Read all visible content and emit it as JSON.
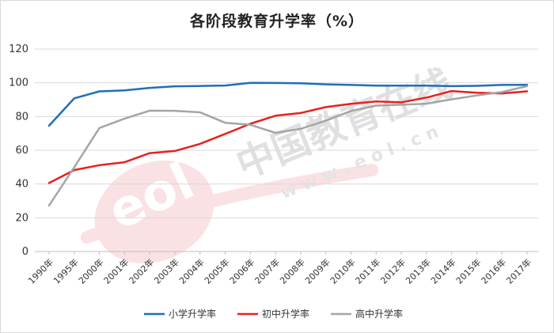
{
  "chart_data": {
    "type": "line",
    "title": "各阶段教育升学率（%）",
    "xlabel": "",
    "ylabel": "",
    "ylim": [
      0,
      120
    ],
    "yticks": [
      0,
      20,
      40,
      60,
      80,
      100,
      120
    ],
    "grid": "horizontal",
    "legend_position": "bottom",
    "categories": [
      "1990年",
      "1995年",
      "2000年",
      "2001年",
      "2002年",
      "2003年",
      "2004年",
      "2005年",
      "2006年",
      "2007年",
      "2008年",
      "2009年",
      "2010年",
      "2011年",
      "2012年",
      "2013年",
      "2014年",
      "2015年",
      "2016年",
      "2017年"
    ],
    "series": [
      {
        "name": "小学升学率",
        "color": "#1f6fb7",
        "values": [
          74.6,
          90.8,
          94.9,
          95.5,
          97.0,
          97.9,
          98.1,
          98.4,
          100.0,
          99.9,
          99.7,
          99.1,
          98.7,
          98.3,
          98.3,
          98.3,
          98.0,
          98.2,
          98.7,
          98.8
        ]
      },
      {
        "name": "初中升学率",
        "color": "#e8211d",
        "values": [
          40.6,
          48.3,
          51.2,
          52.9,
          58.3,
          59.6,
          63.8,
          69.7,
          75.7,
          80.5,
          82.1,
          85.6,
          87.5,
          88.9,
          88.4,
          91.2,
          95.1,
          94.1,
          93.7,
          94.9
        ]
      },
      {
        "name": "高中升学率",
        "color": "#a5a5a5",
        "values": [
          27.3,
          49.9,
          73.2,
          78.8,
          83.5,
          83.4,
          82.5,
          76.3,
          75.1,
          70.3,
          72.7,
          77.6,
          83.3,
          86.5,
          87.0,
          87.6,
          90.2,
          92.5,
          94.5,
          98.0
        ]
      }
    ]
  },
  "watermark": {
    "text_cn": "中国教育在线",
    "text_url": "w w w . e o l . c n",
    "logo": "eol"
  }
}
